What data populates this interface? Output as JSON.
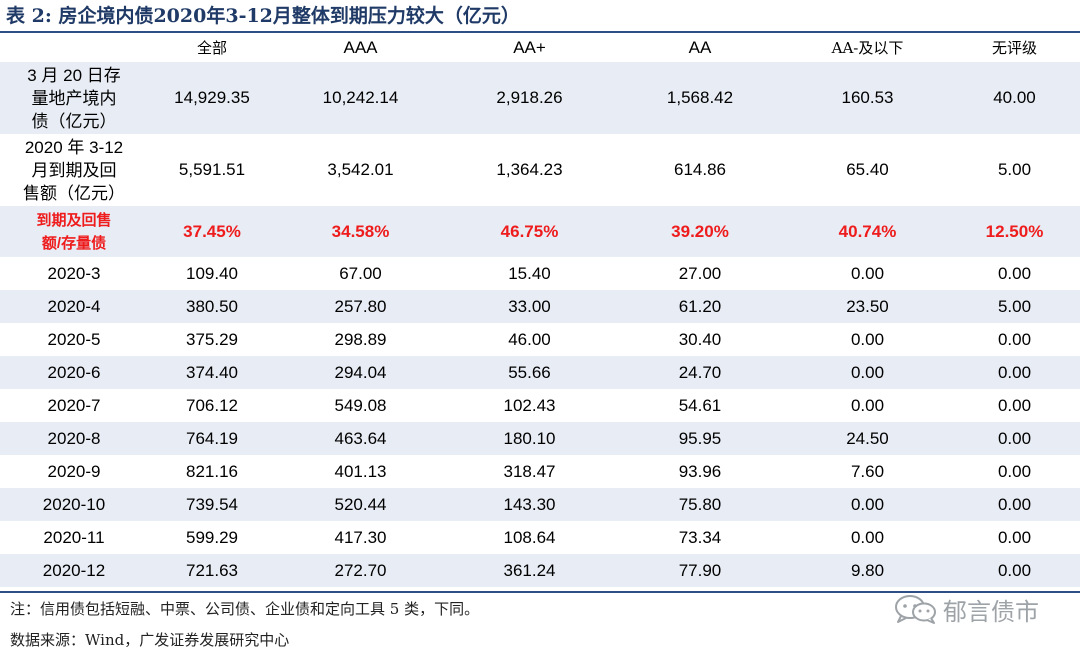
{
  "title": "表 2:  房企境内债2020年3-12月整体到期压力较大（亿元）",
  "columns": [
    "全部",
    "AAA",
    "AA+",
    "AA",
    "AA-及以下",
    "无评级"
  ],
  "rows": [
    {
      "label": [
        "3 月 20 日存",
        "量地产境内",
        "债（亿元）"
      ],
      "values": [
        "14,929.35",
        "10,242.14",
        "2,918.26",
        "1,568.42",
        "160.53",
        "40.00"
      ]
    },
    {
      "label": [
        "2020 年 3-12",
        "月到期及回",
        "售额（亿元）"
      ],
      "values": [
        "5,591.51",
        "3,542.01",
        "1,364.23",
        "614.86",
        "65.40",
        "5.00"
      ]
    },
    {
      "label": [
        "到期及回售",
        "额/存量债"
      ],
      "values": [
        "37.45%",
        "34.58%",
        "46.75%",
        "39.20%",
        "40.74%",
        "12.50%"
      ]
    },
    {
      "label": [
        "2020-3"
      ],
      "values": [
        "109.40",
        "67.00",
        "15.40",
        "27.00",
        "0.00",
        "0.00"
      ]
    },
    {
      "label": [
        "2020-4"
      ],
      "values": [
        "380.50",
        "257.80",
        "33.00",
        "61.20",
        "23.50",
        "5.00"
      ]
    },
    {
      "label": [
        "2020-5"
      ],
      "values": [
        "375.29",
        "298.89",
        "46.00",
        "30.40",
        "0.00",
        "0.00"
      ]
    },
    {
      "label": [
        "2020-6"
      ],
      "values": [
        "374.40",
        "294.04",
        "55.66",
        "24.70",
        "0.00",
        "0.00"
      ]
    },
    {
      "label": [
        "2020-7"
      ],
      "values": [
        "706.12",
        "549.08",
        "102.43",
        "54.61",
        "0.00",
        "0.00"
      ]
    },
    {
      "label": [
        "2020-8"
      ],
      "values": [
        "764.19",
        "463.64",
        "180.10",
        "95.95",
        "24.50",
        "0.00"
      ]
    },
    {
      "label": [
        "2020-9"
      ],
      "values": [
        "821.16",
        "401.13",
        "318.47",
        "93.96",
        "7.60",
        "0.00"
      ]
    },
    {
      "label": [
        "2020-10"
      ],
      "values": [
        "739.54",
        "520.44",
        "143.30",
        "75.80",
        "0.00",
        "0.00"
      ]
    },
    {
      "label": [
        "2020-11"
      ],
      "values": [
        "599.29",
        "417.30",
        "108.64",
        "73.34",
        "0.00",
        "0.00"
      ]
    },
    {
      "label": [
        "2020-12"
      ],
      "values": [
        "721.63",
        "272.70",
        "361.24",
        "77.90",
        "9.80",
        "0.00"
      ]
    }
  ],
  "note": "注：信用债包括短融、中票、公司债、企业债和定向工具 5 类，下同。",
  "source": "数据来源：Wind，广发证券发展研究中心",
  "watermark": {
    "text": "郁言债市",
    "icon": "wechat-icon"
  },
  "colors": {
    "title": "#1f3a66",
    "rule": "#2e4e86",
    "shade": "#e8ecf4",
    "highlight": "#ee1c1c",
    "watermark": "#9ea3a8"
  }
}
